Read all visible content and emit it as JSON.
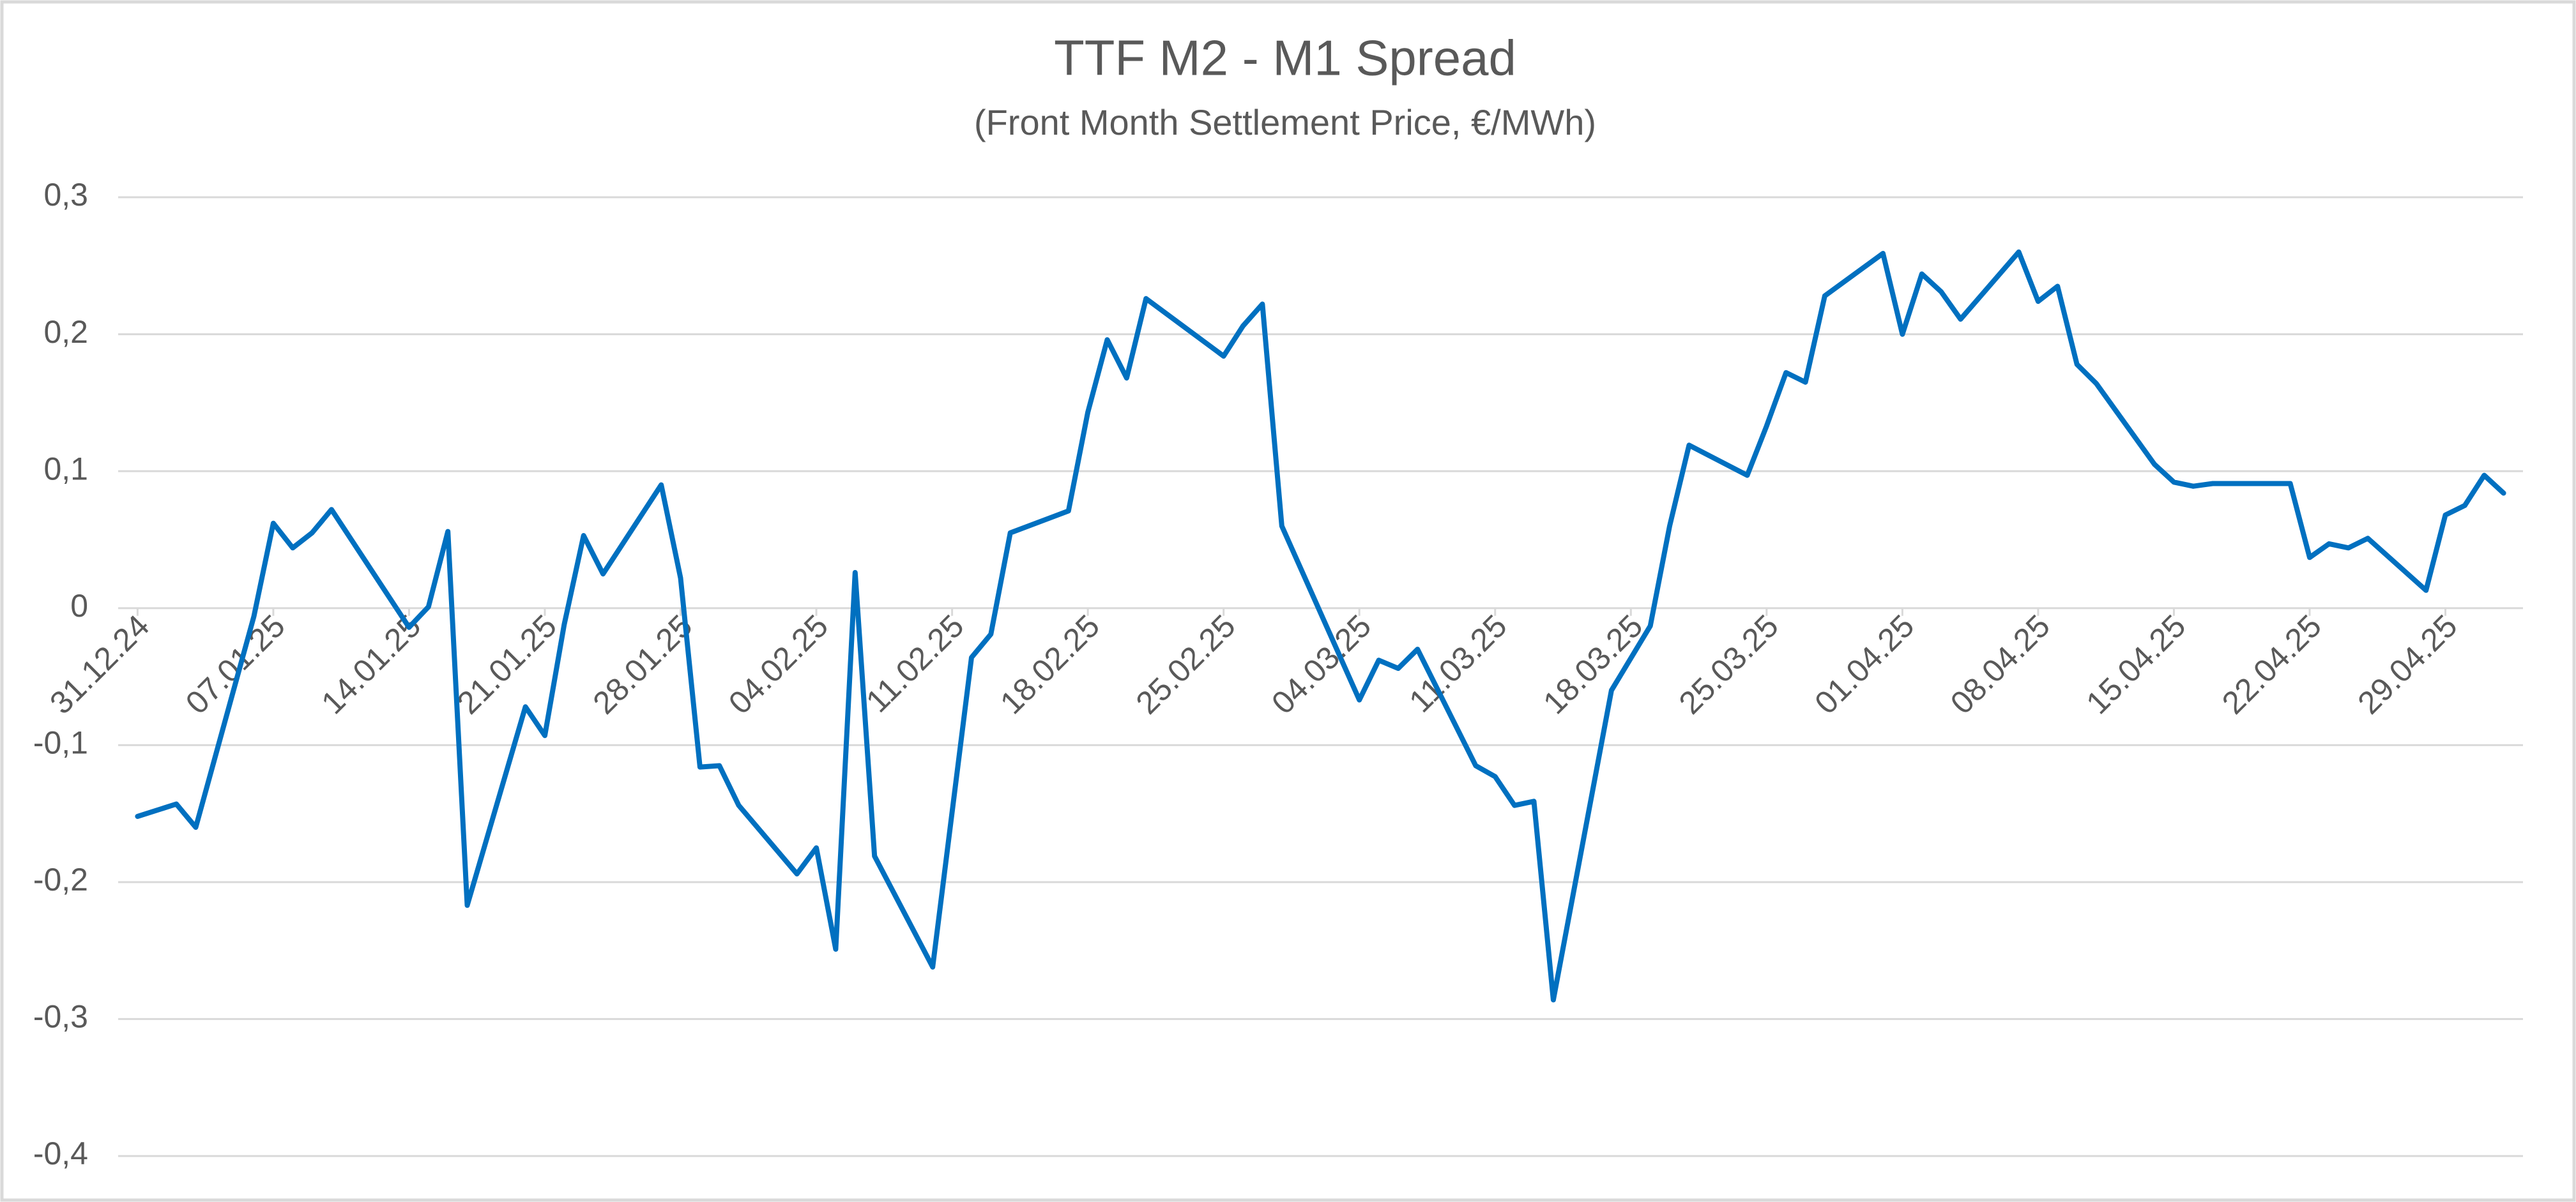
{
  "chart_data": {
    "type": "line",
    "title": "TTF M2 - M1 Spread",
    "subtitle": "(Front Month Settlement Price, €/MWh)",
    "x": [
      "31.12.24",
      "02.01.25",
      "03.01.25",
      "06.01.25",
      "07.01.25",
      "08.01.25",
      "09.01.25",
      "10.01.25",
      "14.01.25",
      "15.01.25",
      "16.01.25",
      "17.01.25",
      "20.01.25",
      "21.01.25",
      "22.01.25",
      "23.01.25",
      "24.01.25",
      "27.01.25",
      "28.01.25",
      "29.01.25",
      "30.01.25",
      "31.01.25",
      "03.02.25",
      "04.02.25",
      "05.02.25",
      "06.02.25",
      "07.02.25",
      "10.02.25",
      "12.02.25",
      "13.02.25",
      "14.02.25",
      "17.02.25",
      "18.02.25",
      "19.02.25",
      "20.02.25",
      "21.02.25",
      "25.02.25",
      "26.02.25",
      "27.02.25",
      "28.02.25",
      "04.03.25",
      "05.03.25",
      "06.03.25",
      "07.03.25",
      "10.03.25",
      "11.03.25",
      "12.03.25",
      "13.03.25",
      "14.03.25",
      "17.03.25",
      "19.03.25",
      "20.03.25",
      "21.03.25",
      "24.03.25",
      "25.03.25",
      "26.03.25",
      "27.03.25",
      "28.03.25",
      "31.03.25",
      "01.04.25",
      "02.04.25",
      "03.04.25",
      "04.04.25",
      "07.04.25",
      "08.04.25",
      "09.04.25",
      "10.04.25",
      "11.04.25",
      "14.04.25",
      "15.04.25",
      "16.04.25",
      "17.04.25",
      "21.04.25",
      "22.04.25",
      "23.04.25",
      "24.04.25",
      "25.04.25",
      "28.04.25",
      "29.04.25",
      "30.04.25",
      "01.05.25",
      "02.05.25"
    ],
    "series": [
      {
        "name": "TTF M2 - M1 Spread",
        "color": "#0070c0",
        "values": [
          -0.152,
          -0.143,
          -0.16,
          -0.006,
          0.062,
          0.044,
          0.055,
          0.072,
          -0.014,
          0.001,
          0.056,
          -0.217,
          -0.072,
          -0.093,
          -0.012,
          0.053,
          0.025,
          0.09,
          0.022,
          -0.116,
          -0.115,
          -0.144,
          -0.194,
          -0.175,
          -0.249,
          0.026,
          -0.181,
          -0.262,
          -0.036,
          -0.019,
          0.055,
          0.071,
          0.143,
          0.196,
          0.168,
          0.226,
          0.184,
          0.206,
          0.222,
          0.06,
          -0.067,
          -0.038,
          -0.044,
          -0.03,
          -0.115,
          -0.123,
          -0.144,
          -0.141,
          -0.286,
          -0.06,
          -0.013,
          0.06,
          0.119,
          0.097,
          0.133,
          0.172,
          0.165,
          0.228,
          0.259,
          0.2,
          0.244,
          0.231,
          0.211,
          0.26,
          0.224,
          0.235,
          0.178,
          0.164,
          0.105,
          0.092,
          0.089,
          0.091,
          0.091,
          0.037,
          0.047,
          0.044,
          0.051,
          0.013,
          0.068,
          0.075,
          0.097,
          0.084
        ]
      }
    ],
    "xlim": [
      "30.12.24",
      "03.05.25"
    ],
    "xticks": [
      "31.12.24",
      "07.01.25",
      "14.01.25",
      "21.01.25",
      "28.01.25",
      "04.02.25",
      "11.02.25",
      "18.02.25",
      "25.02.25",
      "04.03.25",
      "11.03.25",
      "18.03.25",
      "25.03.25",
      "01.04.25",
      "08.04.25",
      "15.04.25",
      "22.04.25",
      "29.04.25"
    ],
    "ylim": [
      -0.4,
      0.3
    ],
    "yticks": [
      {
        "value": 0.3,
        "label": "0,3"
      },
      {
        "value": 0.2,
        "label": "0,2"
      },
      {
        "value": 0.1,
        "label": "0,1"
      },
      0,
      {
        "value": -0.1,
        "label": "-0,1"
      },
      {
        "value": -0.2,
        "label": "-0,2"
      },
      {
        "value": -0.3,
        "label": "-0,3"
      },
      {
        "value": -0.4,
        "label": "-0,4"
      }
    ],
    "grid": true
  }
}
